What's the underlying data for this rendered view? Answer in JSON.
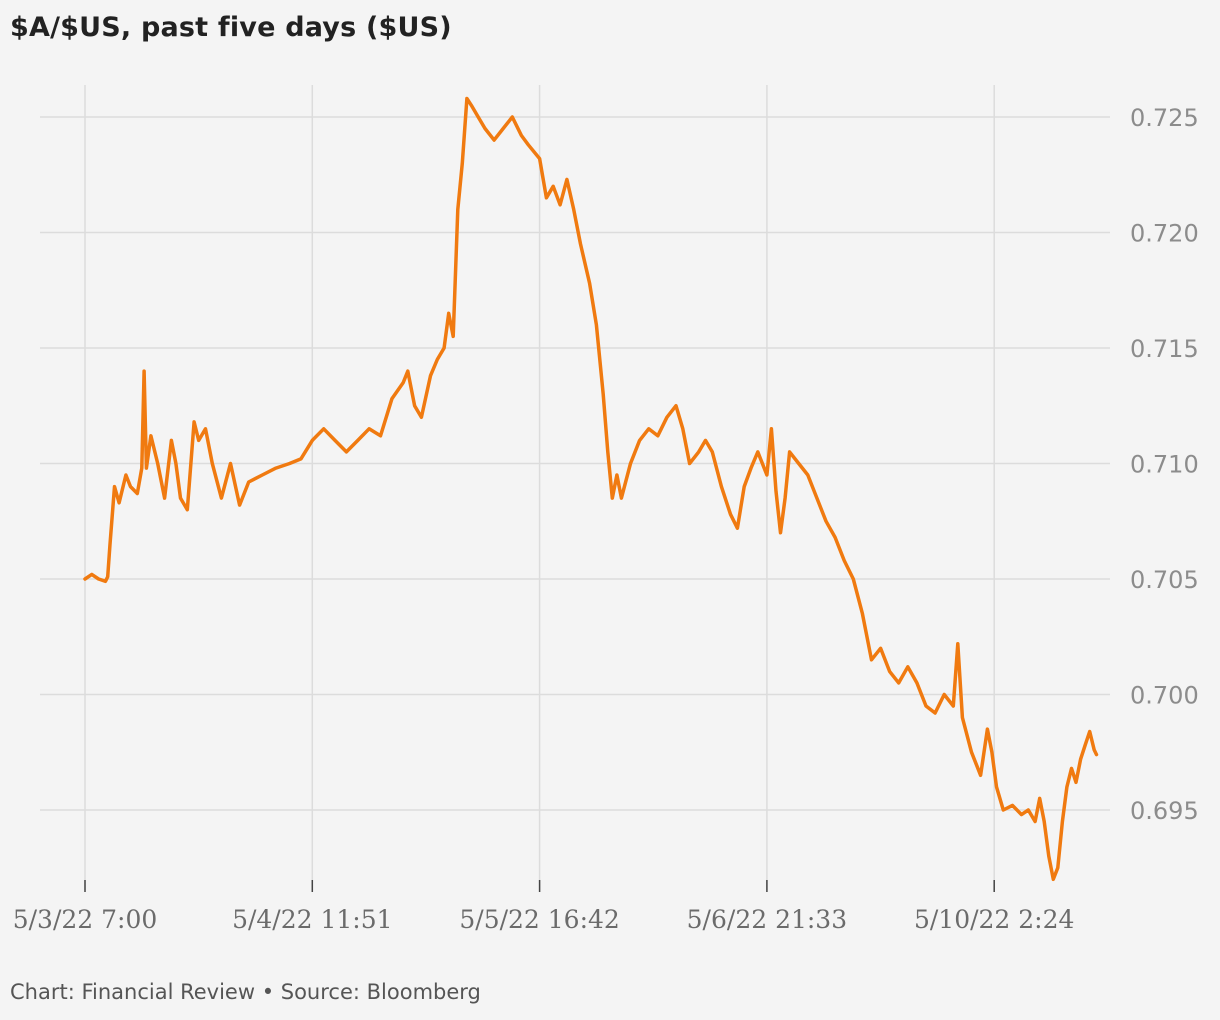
{
  "title": "$A/$US, past five days ($US)",
  "footer": {
    "text": "Chart: Financial Review • Source: Bloomberg"
  },
  "colors": {
    "line": "#f07a10",
    "grid": "#dcdcdc",
    "background": "#f4f4f4"
  },
  "chart_data": {
    "type": "line",
    "title": "$A/$US, past five days ($US)",
    "xlabel": "",
    "ylabel": "",
    "y_axis_side": "right",
    "ylim": [
      0.6914,
      0.7264
    ],
    "yticks": [
      0.695,
      0.7,
      0.705,
      0.71,
      0.715,
      0.72,
      0.725
    ],
    "ytick_labels": [
      "0.695",
      "0.700",
      "0.705",
      "0.710",
      "0.715",
      "0.720",
      "0.725"
    ],
    "xlim": [
      0,
      4.5
    ],
    "xticks": [
      0,
      1,
      2,
      3,
      4
    ],
    "xtick_labels": [
      "5/3/22 7:00",
      "5/4/22 11:51",
      "5/5/22 16:42",
      "5/6/22 21:33",
      "5/10/22 2:24"
    ],
    "grid": true,
    "legend": "none",
    "series": [
      {
        "points": [
          [
            0.0,
            0.705
          ],
          [
            0.03,
            0.7052
          ],
          [
            0.06,
            0.705
          ],
          [
            0.09,
            0.7049
          ],
          [
            0.1,
            0.7051
          ],
          [
            0.11,
            0.7065
          ],
          [
            0.13,
            0.709
          ],
          [
            0.15,
            0.7083
          ],
          [
            0.18,
            0.7095
          ],
          [
            0.2,
            0.709
          ],
          [
            0.23,
            0.7087
          ],
          [
            0.25,
            0.7098
          ],
          [
            0.26,
            0.714
          ],
          [
            0.27,
            0.7098
          ],
          [
            0.29,
            0.7112
          ],
          [
            0.32,
            0.71
          ],
          [
            0.35,
            0.7085
          ],
          [
            0.38,
            0.711
          ],
          [
            0.4,
            0.71
          ],
          [
            0.42,
            0.7085
          ],
          [
            0.45,
            0.708
          ],
          [
            0.48,
            0.7118
          ],
          [
            0.5,
            0.711
          ],
          [
            0.53,
            0.7115
          ],
          [
            0.56,
            0.71
          ],
          [
            0.6,
            0.7085
          ],
          [
            0.64,
            0.71
          ],
          [
            0.68,
            0.7082
          ],
          [
            0.72,
            0.7092
          ],
          [
            0.78,
            0.7095
          ],
          [
            0.84,
            0.7098
          ],
          [
            0.9,
            0.71
          ],
          [
            0.95,
            0.7102
          ],
          [
            1.0,
            0.711
          ],
          [
            1.05,
            0.7115
          ],
          [
            1.1,
            0.711
          ],
          [
            1.15,
            0.7105
          ],
          [
            1.2,
            0.711
          ],
          [
            1.25,
            0.7115
          ],
          [
            1.3,
            0.7112
          ],
          [
            1.35,
            0.7128
          ],
          [
            1.4,
            0.7135
          ],
          [
            1.42,
            0.714
          ],
          [
            1.45,
            0.7125
          ],
          [
            1.48,
            0.712
          ],
          [
            1.52,
            0.7138
          ],
          [
            1.55,
            0.7145
          ],
          [
            1.58,
            0.715
          ],
          [
            1.6,
            0.7165
          ],
          [
            1.62,
            0.7155
          ],
          [
            1.64,
            0.721
          ],
          [
            1.66,
            0.723
          ],
          [
            1.68,
            0.7258
          ],
          [
            1.7,
            0.7255
          ],
          [
            1.73,
            0.725
          ],
          [
            1.76,
            0.7245
          ],
          [
            1.8,
            0.724
          ],
          [
            1.84,
            0.7245
          ],
          [
            1.88,
            0.725
          ],
          [
            1.92,
            0.7242
          ],
          [
            1.95,
            0.7238
          ],
          [
            2.0,
            0.7232
          ],
          [
            2.03,
            0.7215
          ],
          [
            2.06,
            0.722
          ],
          [
            2.09,
            0.7212
          ],
          [
            2.12,
            0.7223
          ],
          [
            2.15,
            0.721
          ],
          [
            2.18,
            0.7195
          ],
          [
            2.22,
            0.7178
          ],
          [
            2.25,
            0.716
          ],
          [
            2.28,
            0.713
          ],
          [
            2.3,
            0.7105
          ],
          [
            2.32,
            0.7085
          ],
          [
            2.34,
            0.7095
          ],
          [
            2.36,
            0.7085
          ],
          [
            2.4,
            0.71
          ],
          [
            2.44,
            0.711
          ],
          [
            2.48,
            0.7115
          ],
          [
            2.52,
            0.7112
          ],
          [
            2.56,
            0.712
          ],
          [
            2.6,
            0.7125
          ],
          [
            2.63,
            0.7115
          ],
          [
            2.66,
            0.71
          ],
          [
            2.7,
            0.7105
          ],
          [
            2.73,
            0.711
          ],
          [
            2.76,
            0.7105
          ],
          [
            2.8,
            0.709
          ],
          [
            2.84,
            0.7078
          ],
          [
            2.87,
            0.7072
          ],
          [
            2.9,
            0.709
          ],
          [
            2.93,
            0.7098
          ],
          [
            2.96,
            0.7105
          ],
          [
            3.0,
            0.7095
          ],
          [
            3.02,
            0.7115
          ],
          [
            3.04,
            0.7088
          ],
          [
            3.06,
            0.707
          ],
          [
            3.08,
            0.7085
          ],
          [
            3.1,
            0.7105
          ],
          [
            3.14,
            0.71
          ],
          [
            3.18,
            0.7095
          ],
          [
            3.22,
            0.7085
          ],
          [
            3.26,
            0.7075
          ],
          [
            3.3,
            0.7068
          ],
          [
            3.34,
            0.7058
          ],
          [
            3.38,
            0.705
          ],
          [
            3.42,
            0.7035
          ],
          [
            3.46,
            0.7015
          ],
          [
            3.5,
            0.702
          ],
          [
            3.54,
            0.701
          ],
          [
            3.58,
            0.7005
          ],
          [
            3.62,
            0.7012
          ],
          [
            3.66,
            0.7005
          ],
          [
            3.7,
            0.6995
          ],
          [
            3.74,
            0.6992
          ],
          [
            3.78,
            0.7
          ],
          [
            3.82,
            0.6995
          ],
          [
            3.84,
            0.7022
          ],
          [
            3.86,
            0.699
          ],
          [
            3.9,
            0.6975
          ],
          [
            3.94,
            0.6965
          ],
          [
            3.97,
            0.6985
          ],
          [
            3.99,
            0.6975
          ],
          [
            4.01,
            0.696
          ],
          [
            4.04,
            0.695
          ],
          [
            4.08,
            0.6952
          ],
          [
            4.12,
            0.6948
          ],
          [
            4.15,
            0.695
          ],
          [
            4.18,
            0.6945
          ],
          [
            4.2,
            0.6955
          ],
          [
            4.22,
            0.6945
          ],
          [
            4.24,
            0.693
          ],
          [
            4.26,
            0.692
          ],
          [
            4.28,
            0.6925
          ],
          [
            4.3,
            0.6945
          ],
          [
            4.32,
            0.696
          ],
          [
            4.34,
            0.6968
          ],
          [
            4.36,
            0.6962
          ],
          [
            4.38,
            0.6972
          ],
          [
            4.4,
            0.6978
          ],
          [
            4.42,
            0.6984
          ],
          [
            4.44,
            0.6976
          ],
          [
            4.45,
            0.6974
          ]
        ]
      }
    ]
  }
}
